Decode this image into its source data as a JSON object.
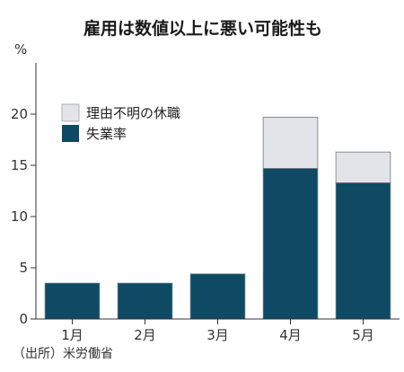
{
  "chart_data": {
    "type": "bar",
    "stacked": true,
    "title": "雇用は数値以上に悪い可能性も",
    "ylabel": "%",
    "ylim": [
      0,
      25
    ],
    "yticks": [
      0,
      5,
      10,
      15,
      20
    ],
    "categories": [
      "1月",
      "2月",
      "3月",
      "4月",
      "5月"
    ],
    "series": [
      {
        "name": "失業率",
        "values": [
          3.5,
          3.5,
          4.4,
          14.7,
          13.3
        ],
        "color": "#0e4a63"
      },
      {
        "name": "理由不明の休職",
        "values": [
          0,
          0,
          0,
          5.0,
          3.0
        ],
        "color": "#e3e3ea"
      }
    ],
    "legend": {
      "position": "top-left",
      "order": [
        "理由不明の休職",
        "失業率"
      ]
    },
    "grid": false,
    "source": "（出所）米労働省"
  }
}
